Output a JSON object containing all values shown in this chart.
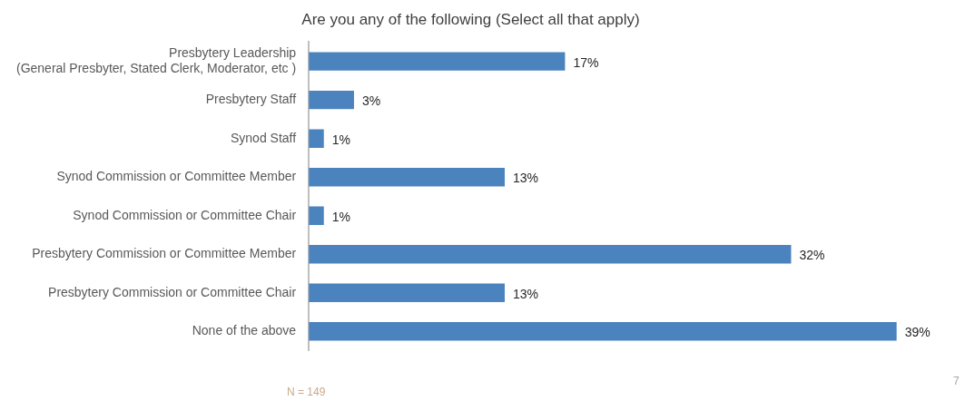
{
  "chart_data": {
    "type": "bar",
    "orientation": "horizontal",
    "tick_labels": "y",
    "title": "Are you any of the following (Select all that apply)",
    "categories": [
      "Presbytery Leadership\n(General Presbyter, Stated Clerk, Moderator, etc )",
      "Presbytery Staff",
      "Synod Staff",
      "Synod Commission or Committee Member",
      "Synod Commission or Committee Chair",
      "Presbytery Commission or Committee Member",
      "Presbytery Commission or Committee Chair",
      "None of the above"
    ],
    "values": [
      17,
      3,
      1,
      13,
      1,
      32,
      13,
      39
    ],
    "value_labels": [
      "17%",
      "3%",
      "1%",
      "13%",
      "1%",
      "32%",
      "13%",
      "39%"
    ],
    "color": "#4a83bd",
    "legend": false,
    "annotations": [
      "N = 149",
      "7"
    ]
  }
}
